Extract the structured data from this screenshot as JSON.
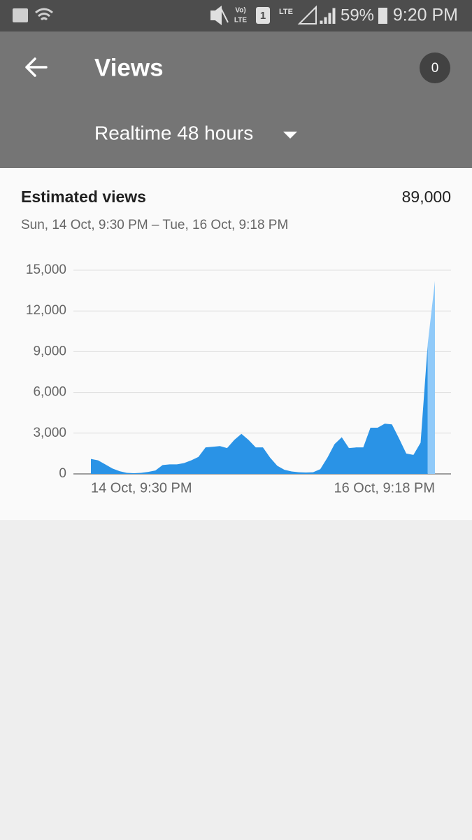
{
  "status_bar": {
    "network_top": "Vo)",
    "network_bottom": "LTE",
    "sim": "1",
    "lte": "LTE",
    "battery": "59%",
    "time": "9:20 PM"
  },
  "app_bar": {
    "title": "Views",
    "badge": "0",
    "dropdown": "Realtime 48 hours"
  },
  "card": {
    "title": "Estimated views",
    "total": "89,000",
    "range": "Sun, 14 Oct, 9:30 PM – Tue, 16 Oct, 9:18 PM"
  },
  "chart_data": {
    "type": "area",
    "color": "#2a93e6",
    "current_color": "#90caf9",
    "grid": true,
    "categories": [
      "14 Oct, 9:30 PM",
      null,
      null,
      null,
      null,
      null,
      null,
      null,
      null,
      null,
      null,
      null,
      null,
      null,
      null,
      null,
      null,
      null,
      null,
      null,
      null,
      null,
      null,
      null,
      null,
      null,
      null,
      null,
      null,
      null,
      null,
      null,
      null,
      null,
      null,
      null,
      null,
      null,
      null,
      null,
      null,
      null,
      null,
      null,
      null,
      null,
      null,
      null,
      "16 Oct, 9:18 PM"
    ],
    "values": [
      1100,
      1000,
      700,
      400,
      200,
      80,
      50,
      80,
      150,
      250,
      650,
      700,
      700,
      800,
      1000,
      1250,
      1950,
      2000,
      2050,
      1900,
      2500,
      2950,
      2500,
      1950,
      1950,
      1200,
      600,
      300,
      180,
      120,
      100,
      120,
      350,
      1200,
      2200,
      2700,
      1900,
      1950,
      1950,
      3400,
      3400,
      3700,
      3650,
      2600,
      1500,
      1400,
      2300,
      9600,
      14200
    ],
    "ylim": [
      0,
      15000
    ],
    "yticks": [
      0,
      {
        "value": 3000,
        "label": "3,000"
      },
      {
        "value": 6000,
        "label": "6,000"
      },
      {
        "value": 9000,
        "label": "9,000"
      },
      {
        "value": 12000,
        "label": "12,000"
      },
      {
        "value": 15000,
        "label": "15,000"
      }
    ]
  }
}
